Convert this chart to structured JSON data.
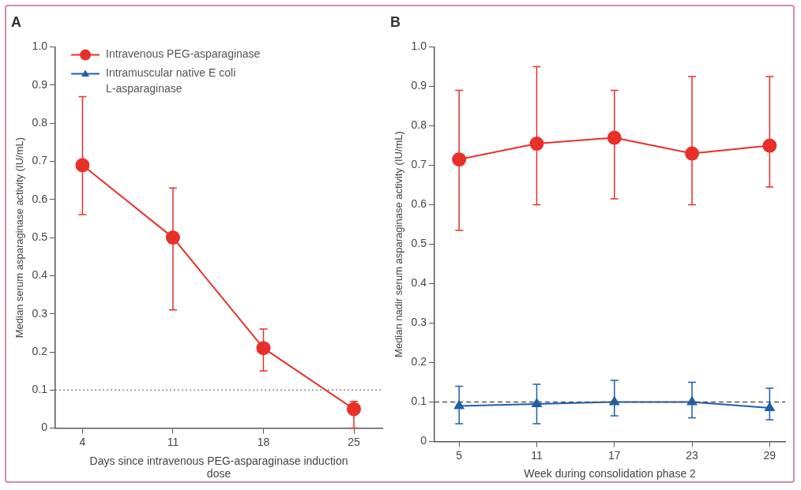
{
  "chart_data": [
    {
      "type": "line",
      "title": "A",
      "xlabel": "Days since intravenous PEG-asparaginase induction dose",
      "ylabel": "Median serum asparaginase activity (IU/mL)",
      "x": [
        4,
        11,
        18,
        25
      ],
      "xlim": [
        1.9,
        27.2
      ],
      "xticks": [
        4,
        11,
        18,
        25
      ],
      "ylim": [
        0,
        1
      ],
      "yticks": [
        0,
        0.1,
        0.2,
        0.3,
        0.4,
        0.5,
        0.6,
        0.7,
        0.8,
        0.9,
        {
          "value": 1,
          "label": "1.0"
        }
      ],
      "series": [
        {
          "name": "Intravenous PEG-asparaginase",
          "color": "#e8302a",
          "marker": "circle",
          "line_style": "solid",
          "values": [
            0.69,
            0.5,
            0.21,
            0.05
          ],
          "errors": [
            [
              0.56,
              0.87
            ],
            [
              0.31,
              0.63
            ],
            [
              0.15,
              0.26
            ],
            [
              0,
              0.07
            ]
          ]
        },
        {
          "name": "Intramuscular native E coli L-asparaginase",
          "color": "#1f5fa8",
          "marker": "triangle",
          "line_style": "solid",
          "values": [
            null,
            null,
            null,
            null
          ]
        }
      ],
      "ref_lines": [
        {
          "axis": "y",
          "value": 0.1,
          "color": "#888888",
          "line_style": "dotted"
        }
      ],
      "grid": false,
      "legend": "top left"
    },
    {
      "type": "line",
      "title": "B",
      "xlabel": "Week during consolidation phase 2",
      "ylabel": "Median nadir serum asparaginase activity (IU/mL)",
      "x": [
        5,
        11,
        17,
        23,
        29
      ],
      "xlim": [
        3.1,
        30.2
      ],
      "xticks": [
        5,
        11,
        17,
        23,
        29
      ],
      "ylim": [
        0,
        1
      ],
      "yticks": [
        0,
        0.1,
        0.2,
        0.3,
        0.4,
        0.5,
        0.6,
        0.7,
        0.8,
        0.9,
        {
          "value": 1,
          "label": "1.0"
        }
      ],
      "series": [
        {
          "color": "#e8302a",
          "marker": "circle",
          "line_style": "solid",
          "values": [
            0.715,
            0.755,
            0.77,
            0.73,
            0.75
          ],
          "errors": [
            [
              0.535,
              0.89
            ],
            [
              0.6,
              0.95
            ],
            [
              0.615,
              0.89
            ],
            [
              0.6,
              0.925
            ],
            [
              0.645,
              0.925
            ]
          ]
        },
        {
          "color": "#1f5fa8",
          "marker": "triangle",
          "line_style": "solid",
          "values": [
            0.09,
            0.095,
            0.1,
            0.1,
            0.085
          ],
          "errors": [
            [
              0.045,
              0.14
            ],
            [
              0.045,
              0.145
            ],
            [
              0.065,
              0.155
            ],
            [
              0.06,
              0.15
            ],
            [
              0.055,
              0.135
            ]
          ]
        }
      ],
      "ref_lines": [
        {
          "axis": "y",
          "value": 0.1,
          "color": "#555555",
          "line_style": "dashed"
        }
      ],
      "grid": false,
      "legend": false
    }
  ]
}
